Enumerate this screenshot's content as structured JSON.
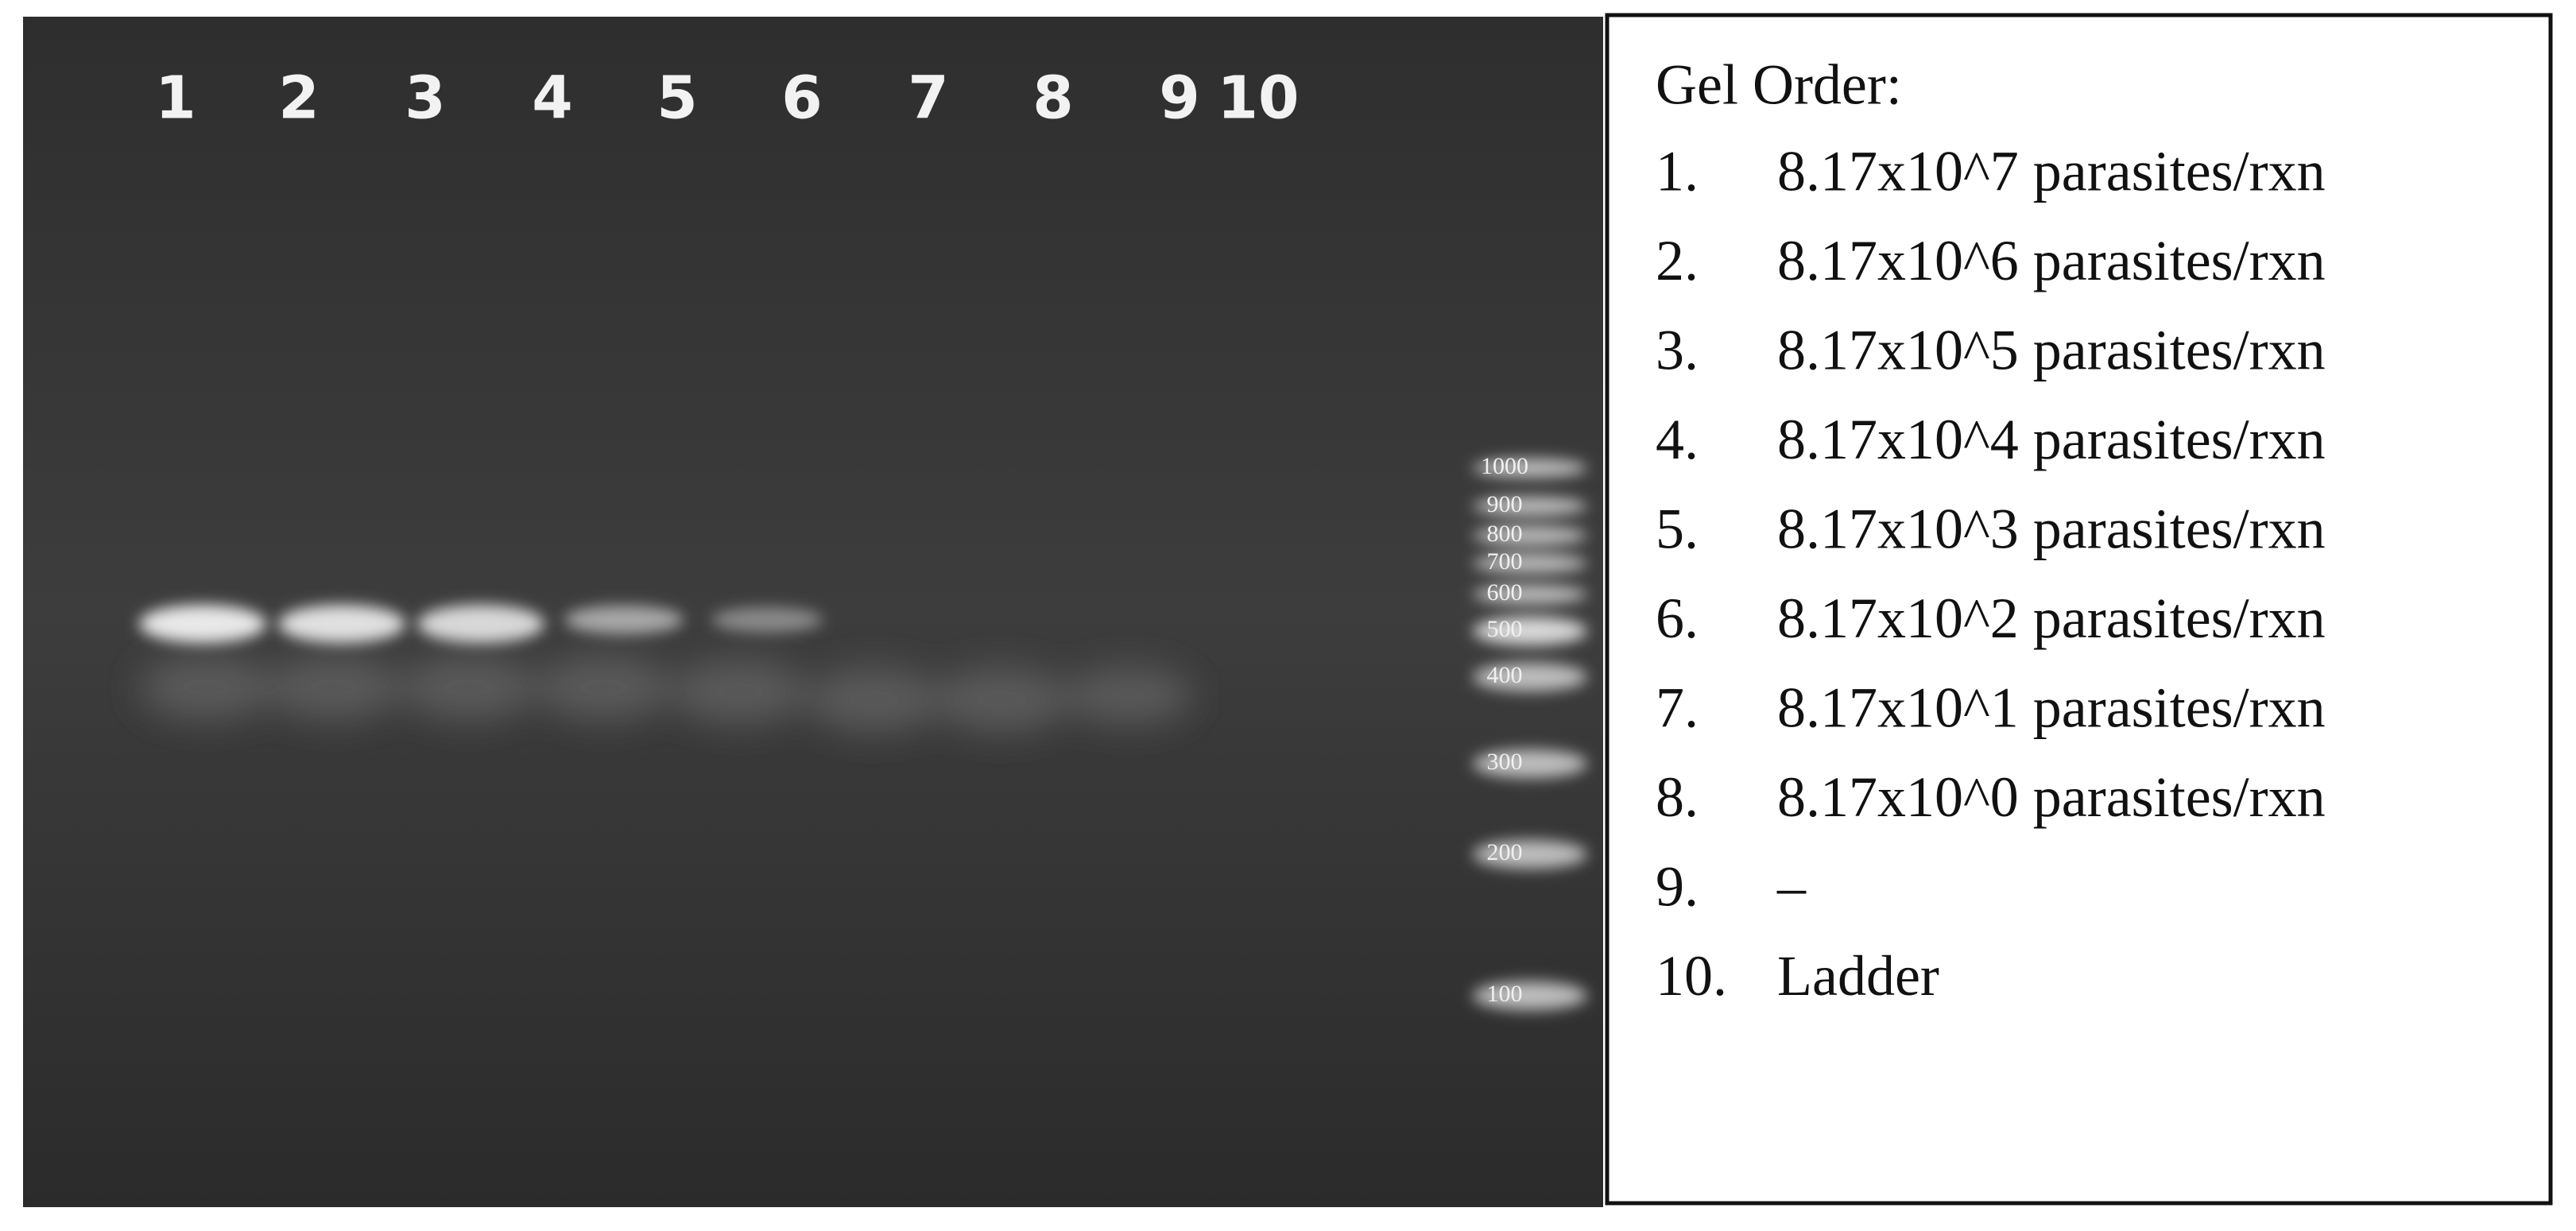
{
  "gel": {
    "lanes": [
      "1",
      "2",
      "3",
      "4",
      "5",
      "6",
      "7",
      "8",
      "9",
      "10"
    ],
    "ladder": [
      1000,
      900,
      800,
      700,
      600,
      500,
      400,
      300,
      200,
      100
    ]
  },
  "legend": {
    "title": "Gel Order:",
    "items": [
      {
        "number": "1.",
        "text": "8.17x10^7 parasites/rxn"
      },
      {
        "number": "2.",
        "text": "8.17x10^6 parasites/rxn"
      },
      {
        "number": "3.",
        "text": "8.17x10^5 parasites/rxn"
      },
      {
        "number": "4.",
        "text": "8.17x10^4 parasites/rxn"
      },
      {
        "number": "5.",
        "text": "8.17x10^3 parasites/rxn"
      },
      {
        "number": "6.",
        "text": "8.17x10^2 parasites/rxn"
      },
      {
        "number": "7.",
        "text": "8.17x10^1 parasites/rxn"
      },
      {
        "number": "8.",
        "text": "8.17x10^0 parasites/rxn"
      },
      {
        "number": "9.",
        "text": "–"
      },
      {
        "number": "10.",
        "text": "Ladder"
      }
    ]
  }
}
